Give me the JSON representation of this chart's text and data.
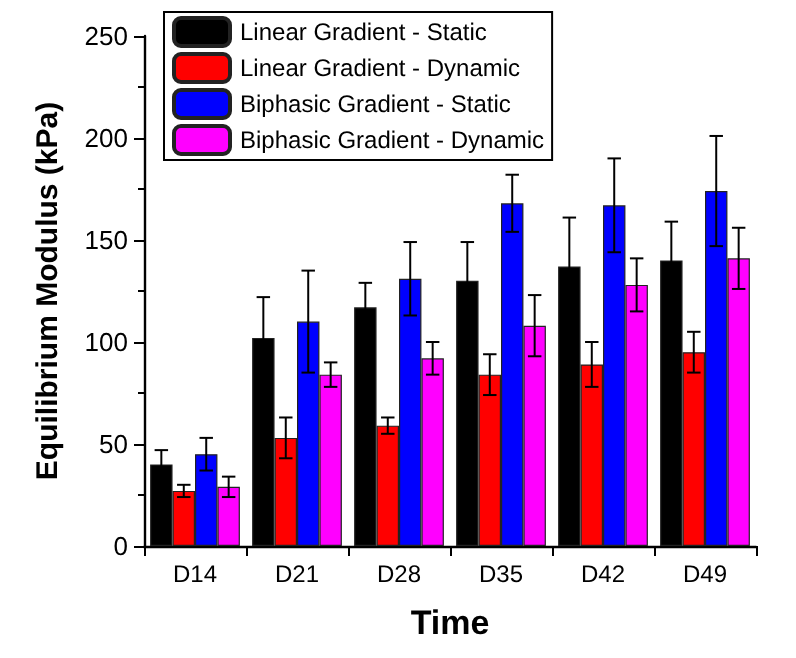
{
  "chart_data": {
    "type": "bar",
    "xlabel": "Time",
    "ylabel": "Equilibrium Modulus (kPa)",
    "categories": [
      "D14",
      "D21",
      "D28",
      "D35",
      "D42",
      "D49"
    ],
    "series": [
      {
        "name": "Linear Gradient - Static",
        "color": "#000000",
        "values": [
          40,
          102,
          117,
          130,
          137,
          140
        ],
        "errors": [
          7,
          20,
          12,
          19,
          24,
          19
        ]
      },
      {
        "name": "Linear Gradient - Dynamic",
        "color": "#ff0000",
        "values": [
          27,
          53,
          59,
          84,
          89,
          95
        ],
        "errors": [
          3,
          10,
          4,
          10,
          11,
          10
        ]
      },
      {
        "name": "Biphasic Gradient - Static",
        "color": "#0000ff",
        "values": [
          45,
          110,
          131,
          168,
          167,
          174
        ],
        "errors": [
          8,
          25,
          18,
          14,
          23,
          27
        ]
      },
      {
        "name": "Biphasic Gradient - Dynamic",
        "color": "#ff00ff",
        "values": [
          29,
          84,
          92,
          108,
          128,
          141
        ],
        "errors": [
          5,
          6,
          8,
          15,
          13,
          15
        ]
      }
    ],
    "ylim": [
      0,
      250
    ],
    "yticks": [
      0,
      50,
      100,
      150,
      200,
      250
    ],
    "grid": false,
    "legend": "top left"
  }
}
